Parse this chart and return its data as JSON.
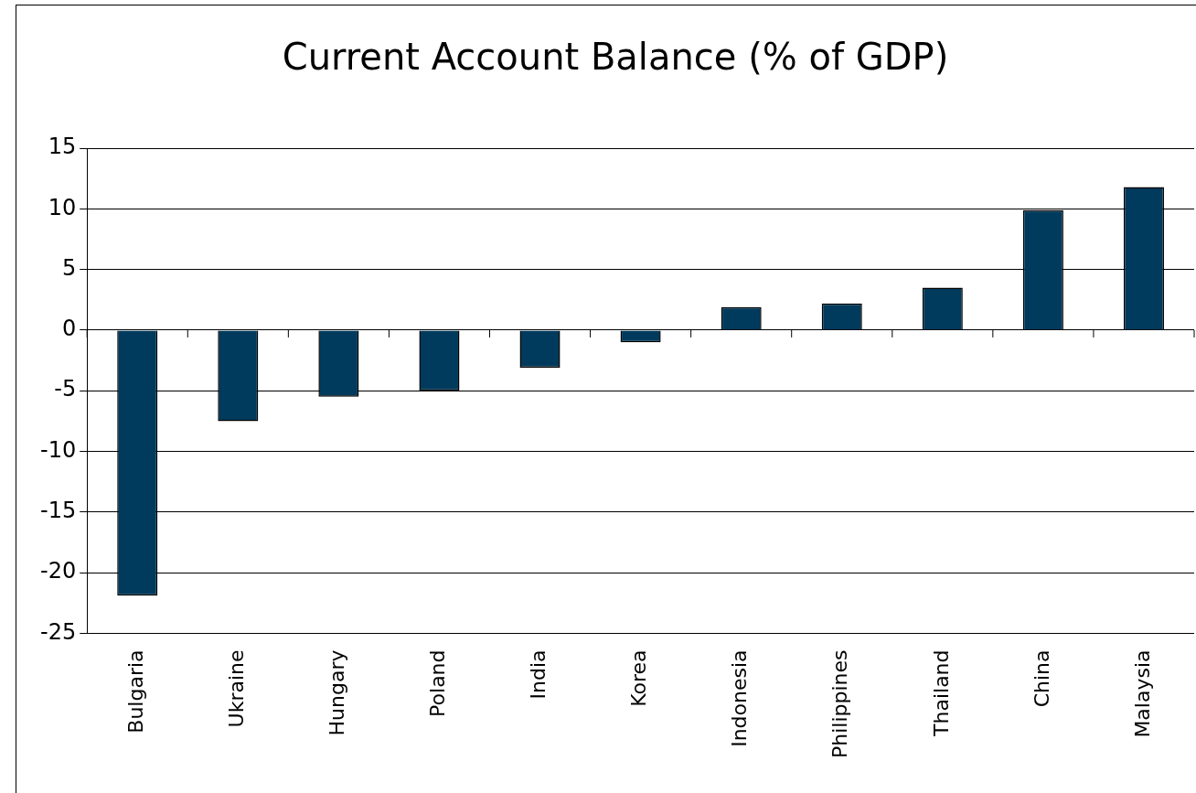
{
  "chart_data": {
    "type": "bar",
    "title": "Current Account Balance (% of GDP)",
    "categories": [
      "Bulgaria",
      "Ukraine",
      "Hungary",
      "Poland",
      "India",
      "Korea",
      "Indonesia",
      "Philippines",
      "Thailand",
      "China",
      "Malaysia"
    ],
    "values": [
      -21.9,
      -7.5,
      -5.5,
      -5,
      -3.1,
      -1,
      1.9,
      2.2,
      3.5,
      9.9,
      11.8
    ],
    "color": "#003a5c",
    "ylim": [
      -25,
      15
    ],
    "yticks": [
      -25,
      -20,
      -15,
      -10,
      -5,
      0,
      5,
      10,
      15
    ],
    "grid": "y",
    "legend": false
  }
}
